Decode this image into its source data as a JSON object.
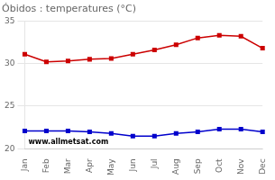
{
  "chart_data": {
    "type": "line",
    "title": "Óbidos : temperatures (°C)",
    "categories": [
      "Jan",
      "Feb",
      "Mar",
      "Apr",
      "May",
      "Jun",
      "Jul",
      "Aug",
      "Sep",
      "Oct",
      "Nov",
      "Dec"
    ],
    "series": [
      {
        "color": "#cc0000",
        "marker": "square",
        "values": [
          31.1,
          30.2,
          30.3,
          30.5,
          30.6,
          31.1,
          31.6,
          32.2,
          33.0,
          33.3,
          33.2,
          31.8
        ]
      },
      {
        "color": "#0000cc",
        "marker": "square",
        "values": [
          22.1,
          22.1,
          22.1,
          22.0,
          21.8,
          21.5,
          21.5,
          21.8,
          22.0,
          22.3,
          22.3,
          22.0
        ]
      }
    ],
    "ylim": [
      20,
      35
    ],
    "yticks": [
      20,
      25,
      30,
      35
    ],
    "grid": true,
    "annotation": "www.allmetsat.com"
  }
}
